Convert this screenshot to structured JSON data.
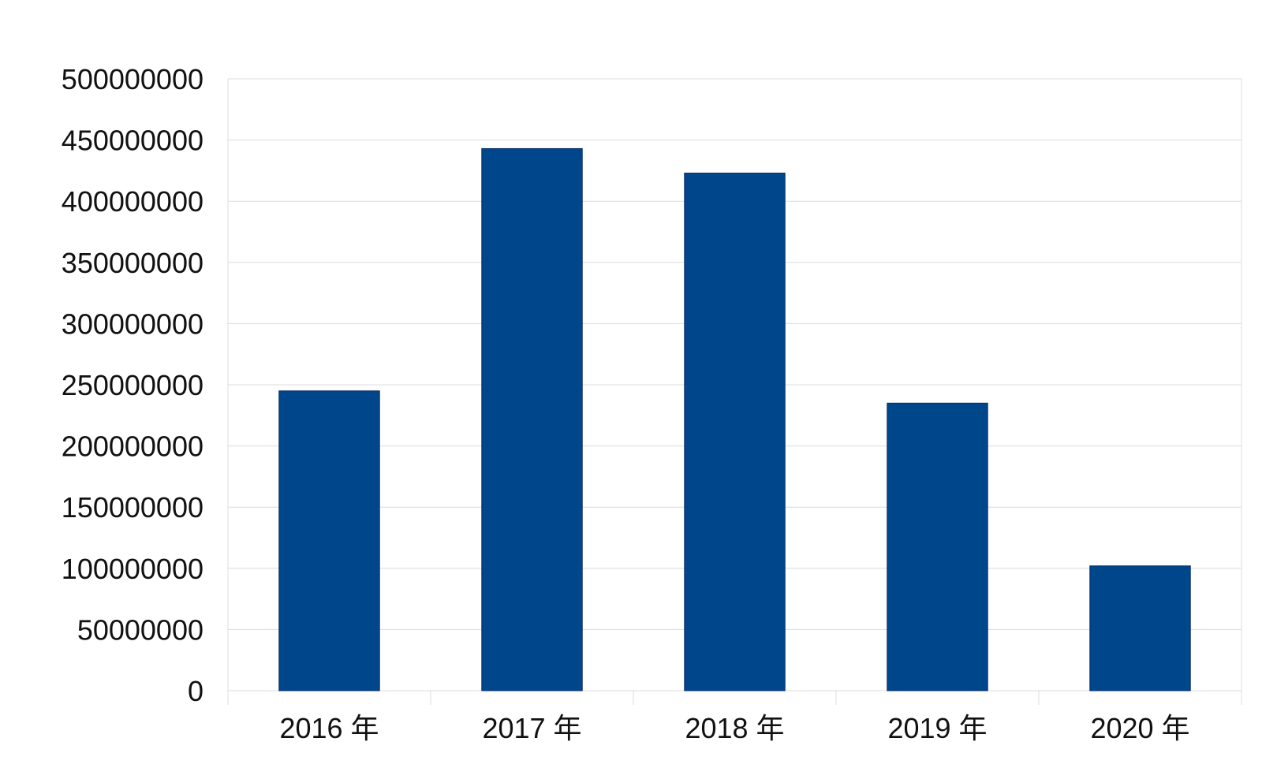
{
  "chart_data": {
    "type": "bar",
    "categories": [
      "2016 年",
      "2017 年",
      "2018 年",
      "2019 年",
      "2020 年"
    ],
    "series": [
      {
        "values": [
          245000000,
          443000000,
          423000000,
          235000000,
          102000000
        ],
        "color": "#00468b"
      }
    ],
    "y_ticks": [
      0,
      50000000,
      100000000,
      150000000,
      200000000,
      250000000,
      300000000,
      350000000,
      400000000,
      450000000,
      500000000
    ],
    "ylim": [
      0,
      500000000
    ],
    "title": "",
    "xlabel": "",
    "ylabel": "",
    "grid": true,
    "legend": "none",
    "colors": {
      "bar": "#00468b",
      "grid": "#dcdcdc",
      "text": "#111111"
    }
  }
}
